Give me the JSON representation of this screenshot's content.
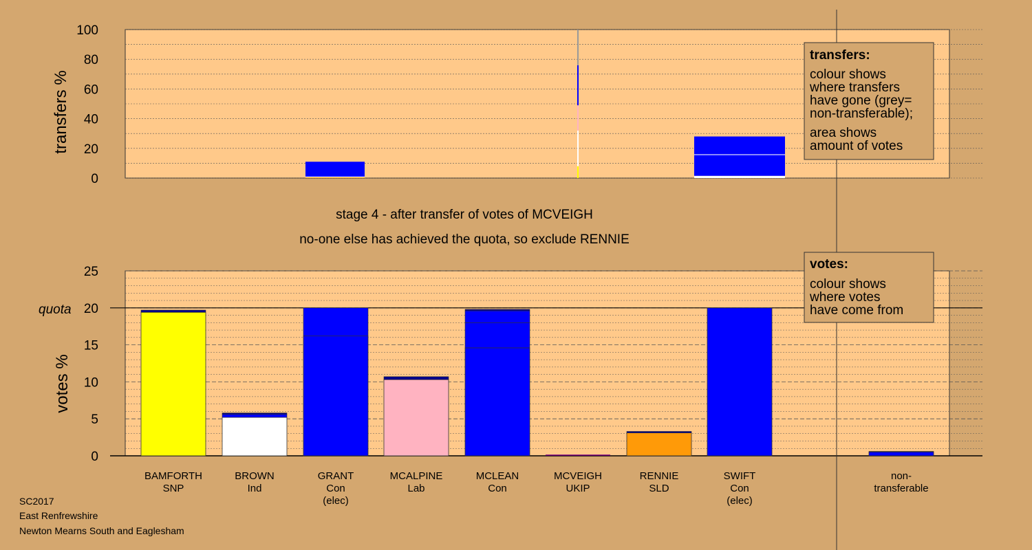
{
  "colors": {
    "background": "#d4a76f",
    "plot_bg": "#ffc98a",
    "SNP": "#ffff00",
    "Ind": "#ffffff",
    "Con": "#0000ff",
    "Lab": "#ffb3c1",
    "UKIP": "#7a0080",
    "SLD": "#ff9a08",
    "dark_blue": "#00008b",
    "grey": "#999999"
  },
  "stage_text": {
    "line1": "stage 4 - after transfer of votes of MCVEIGH",
    "line2": "no-one else has achieved the quota, so exclude RENNIE"
  },
  "legend_transfers": {
    "title": "transfers:",
    "lines": [
      "colour shows",
      "where transfers",
      "have gone (grey=",
      "non-transferable);",
      "area shows",
      "amount of votes"
    ]
  },
  "legend_votes": {
    "title": "votes:",
    "lines": [
      "colour shows",
      "where votes",
      "have come from"
    ]
  },
  "footer": {
    "line1": "SC2017",
    "line2": "East Renfrewshire",
    "line3": "Newton Mearns South and Eaglesham"
  },
  "chart_data": [
    {
      "type": "bar",
      "ylabel": "transfers %",
      "ylim": [
        0,
        100
      ],
      "yticks": [
        0,
        20,
        40,
        60,
        80,
        100
      ],
      "description_note": "",
      "columns": [
        {
          "candidate": "BROWN",
          "width_share": 0.6,
          "segments": [
            {
              "color": "SLD",
              "value": 0.5
            },
            {
              "color": "Ind",
              "value": 0.5
            },
            {
              "color": "Con",
              "value": 10
            }
          ]
        },
        {
          "candidate": "MCVEIGH",
          "width_share": 0.02,
          "segments": [
            {
              "color": "SNP",
              "value": 8
            },
            {
              "color": "Ind",
              "value": 24
            },
            {
              "color": "Lab",
              "value": 17
            },
            {
              "color": "Con",
              "value": 27
            },
            {
              "color": "grey",
              "value": 24
            }
          ]
        },
        {
          "candidate": "SWIFT",
          "width_share": 0.92,
          "segments": [
            {
              "color": "Ind",
              "value": 1.5
            },
            {
              "color": "Con",
              "value": 14
            },
            {
              "color": "Ind",
              "value": 0.5
            },
            {
              "color": "Con",
              "value": 12
            }
          ]
        }
      ]
    },
    {
      "type": "bar",
      "ylabel": "votes %",
      "ylim": [
        0,
        25
      ],
      "yticks": [
        0,
        5,
        10,
        15,
        20,
        25
      ],
      "quota_label": "quota",
      "quota": 20,
      "categories": [
        {
          "name": "BAMFORTH",
          "party": "SNP",
          "note": ""
        },
        {
          "name": "BROWN",
          "party": "Ind",
          "note": ""
        },
        {
          "name": "GRANT",
          "party": "Con",
          "note": "(elec)"
        },
        {
          "name": "MCALPINE",
          "party": "Lab",
          "note": ""
        },
        {
          "name": "MCLEAN",
          "party": "Con",
          "note": ""
        },
        {
          "name": "MCVEIGH",
          "party": "UKIP",
          "note": ""
        },
        {
          "name": "RENNIE",
          "party": "SLD",
          "note": ""
        },
        {
          "name": "SWIFT",
          "party": "Con",
          "note": "(elec)"
        },
        {
          "name": "",
          "party": "",
          "note": ""
        },
        {
          "name": "non-",
          "party": "transferable",
          "note": ""
        }
      ],
      "series": [
        {
          "segments": [
            {
              "color": "SNP",
              "value": 19.4
            },
            {
              "color": "dark_blue",
              "value": 0.3
            }
          ]
        },
        {
          "segments": [
            {
              "color": "Ind",
              "value": 5.2
            },
            {
              "color": "Con",
              "value": 0.4
            },
            {
              "color": "dark_blue",
              "value": 0.2
            }
          ]
        },
        {
          "segments": [
            {
              "color": "Con",
              "value": 16.2
            },
            {
              "color": "Con",
              "value": 3.8
            }
          ]
        },
        {
          "segments": [
            {
              "color": "Lab",
              "value": 10.3
            },
            {
              "color": "dark_blue",
              "value": 0.4
            }
          ]
        },
        {
          "segments": [
            {
              "color": "Con",
              "value": 14.6
            },
            {
              "color": "Con",
              "value": 3.4
            },
            {
              "color": "Con",
              "value": 1.6
            },
            {
              "color": "dark_blue",
              "value": 0.2
            }
          ]
        },
        {
          "segments": [
            {
              "color": "UKIP",
              "value": 0.0
            }
          ]
        },
        {
          "segments": [
            {
              "color": "SLD",
              "value": 3.1
            },
            {
              "color": "dark_blue",
              "value": 0.2
            }
          ]
        },
        {
          "segments": [
            {
              "color": "Con",
              "value": 20.0
            }
          ]
        },
        {
          "segments": []
        },
        {
          "segments": [
            {
              "color": "Con",
              "value": 0.5
            },
            {
              "color": "dark_blue",
              "value": 0.1
            }
          ]
        }
      ]
    }
  ]
}
